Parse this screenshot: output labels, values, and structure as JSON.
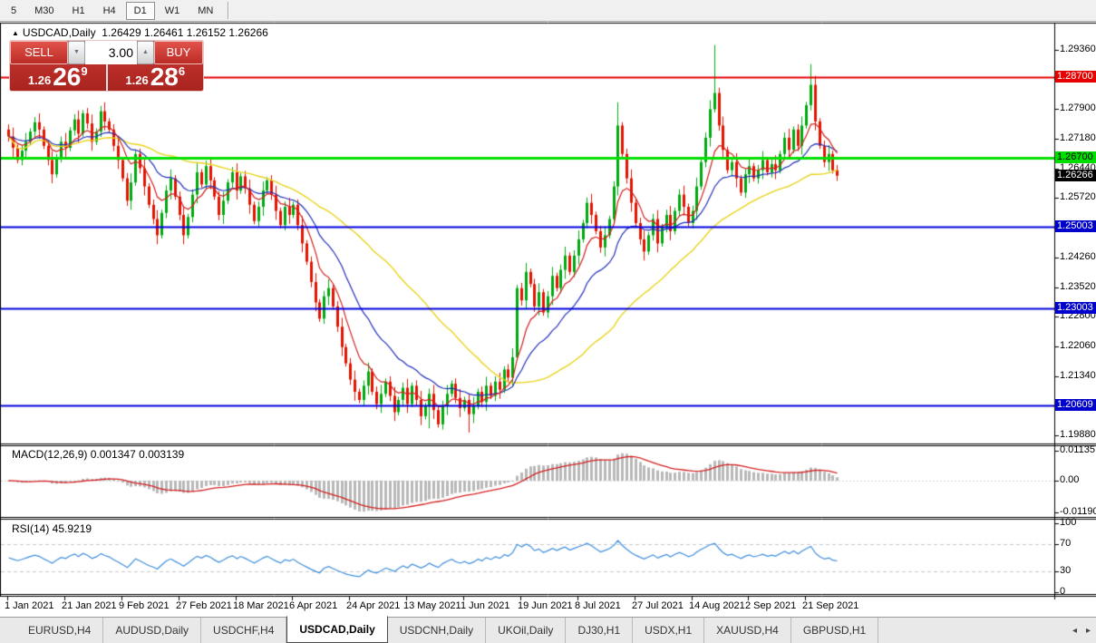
{
  "toolbar": {
    "timeframes": [
      {
        "label": "5",
        "active": false
      },
      {
        "label": "M30",
        "active": false
      },
      {
        "label": "H1",
        "active": false
      },
      {
        "label": "H4",
        "active": false
      },
      {
        "label": "D1",
        "active": true
      },
      {
        "label": "W1",
        "active": false
      },
      {
        "label": "MN",
        "active": false
      }
    ]
  },
  "chart": {
    "symbol": "USDCAD,Daily",
    "ohlc_text": "1.26429 1.26461 1.26152 1.26266"
  },
  "trade_panel": {
    "sell_label": "SELL",
    "buy_label": "BUY",
    "volume": "3.00",
    "sell": {
      "prefix": "1.26",
      "big": "26",
      "sup": "9"
    },
    "buy": {
      "prefix": "1.26",
      "big": "28",
      "sup": "6"
    }
  },
  "price_axis": {
    "ticks": [
      "1.29360",
      "1.28640",
      "1.27900",
      "1.27180",
      "1.26440",
      "1.25720",
      "1.24980",
      "1.24260",
      "1.23520",
      "1.22800",
      "1.22060",
      "1.21340",
      "1.20620",
      "1.19880"
    ],
    "levels": [
      {
        "price": 1.287,
        "label": "1.28700",
        "line_color": "#e60000",
        "label_bg": "#e60000",
        "label_fg": "#ffffff",
        "width": 2
      },
      {
        "price": 1.267,
        "label": "1.26700",
        "line_color": "#00e000",
        "label_bg": "#00dd00",
        "label_fg": "#000000",
        "width": 3
      },
      {
        "price": 1.25003,
        "label": "1.25003",
        "line_color": "#0000dd",
        "label_bg": "#0000cc",
        "label_fg": "#ffffff",
        "width": 2
      },
      {
        "price": 1.23003,
        "label": "1.23003",
        "line_color": "#0000dd",
        "label_bg": "#0000cc",
        "label_fg": "#ffffff",
        "width": 2
      },
      {
        "price": 1.20609,
        "label": "1.20609",
        "line_color": "#0000dd",
        "label_bg": "#0000cc",
        "label_fg": "#ffffff",
        "width": 2
      }
    ],
    "current_price": {
      "price": 1.26266,
      "label": "1.26266",
      "label_bg": "#000000",
      "label_fg": "#ffffff"
    }
  },
  "macd_panel": {
    "title": "MACD(12,26,9) 0.001347 0.003139",
    "axis": [
      {
        "label": "0.01135",
        "value": 0.01135
      },
      {
        "label": "0.00",
        "value": 0
      },
      {
        "label": "-0.011904",
        "value": -0.011904
      }
    ],
    "histogram_color": "#b8b8b8",
    "signal_color": "#d42020"
  },
  "rsi_panel": {
    "title": "RSI(14) 45.9219",
    "axis": [
      {
        "label": "100",
        "value": 100
      },
      {
        "label": "70",
        "value": 70
      },
      {
        "label": "30",
        "value": 30
      },
      {
        "label": "0",
        "value": 0
      }
    ],
    "dashed_levels": [
      70,
      30
    ],
    "line_color": "#3e8ede"
  },
  "date_axis": {
    "labels": [
      "1 Jan 2021",
      "21 Jan 2021",
      "9 Feb 2021",
      "27 Feb 2021",
      "18 Mar 2021",
      "6 Apr 2021",
      "24 Apr 2021",
      "13 May 2021",
      "1 Jun 2021",
      "19 Jun 2021",
      "8 Jul 2021",
      "27 Jul 2021",
      "14 Aug 2021",
      "2 Sep 2021",
      "21 Sep 2021"
    ],
    "indices": [
      0,
      13,
      26,
      39,
      52,
      65,
      78,
      91,
      104,
      117,
      130,
      143,
      156,
      169,
      182
    ]
  },
  "tabs": {
    "items": [
      "EURUSD,H4",
      "AUDUSD,Daily",
      "USDCHF,H4",
      "USDCAD,Daily",
      "USDCNH,Daily",
      "UKOil,Daily",
      "DJ30,H1",
      "USDX,H1",
      "XAUUSD,H4",
      "GBPUSD,H1"
    ],
    "active_index": 3,
    "scroll_left_icon": "◂",
    "scroll_right_icon": "▸"
  },
  "chart_data": {
    "type": "candlestick",
    "symbol": "USDCAD",
    "timeframe": "Daily",
    "bull_color": "#00aa10",
    "bear_color": "#e51400",
    "closes": [
      1.2723,
      1.2695,
      1.2665,
      1.2688,
      1.271,
      1.2735,
      1.2758,
      1.274,
      1.27,
      1.2665,
      1.263,
      1.2672,
      1.271,
      1.2695,
      1.2738,
      1.2765,
      1.273,
      1.278,
      1.2755,
      1.271,
      1.2735,
      1.2785,
      1.276,
      1.274,
      1.27,
      1.2665,
      1.262,
      1.2565,
      1.261,
      1.268,
      1.2645,
      1.26,
      1.2555,
      1.252,
      1.248,
      1.2535,
      1.259,
      1.262,
      1.2575,
      1.253,
      1.248,
      1.2525,
      1.258,
      1.2635,
      1.2605,
      1.265,
      1.2615,
      1.2575,
      1.253,
      1.2565,
      1.261,
      1.2635,
      1.259,
      1.2625,
      1.2595,
      1.2555,
      1.2515,
      1.255,
      1.259,
      1.2615,
      1.258,
      1.254,
      1.2505,
      1.255,
      1.253,
      1.2555,
      1.2505,
      1.246,
      1.2415,
      1.2365,
      1.2315,
      1.2275,
      1.233,
      1.235,
      1.2305,
      1.2255,
      1.2205,
      1.2165,
      1.2125,
      1.2095,
      1.2075,
      1.211,
      1.2145,
      1.2095,
      1.2065,
      1.209,
      1.212,
      1.2085,
      1.2045,
      1.2075,
      1.2105,
      1.2065,
      1.211,
      1.2075,
      1.2035,
      1.206,
      1.209,
      1.205,
      1.2015,
      1.206,
      1.209,
      1.2115,
      1.208,
      1.2055,
      1.2075,
      1.204,
      1.206,
      1.2095,
      1.207,
      1.211,
      1.2085,
      1.212,
      1.21,
      1.215,
      1.213,
      1.218,
      1.235,
      1.232,
      1.239,
      1.236,
      1.2305,
      1.234,
      1.229,
      1.233,
      1.238,
      1.235,
      1.2395,
      1.243,
      1.239,
      1.243,
      1.247,
      1.251,
      1.256,
      1.253,
      1.249,
      1.245,
      1.248,
      1.252,
      1.26,
      1.275,
      1.268,
      1.262,
      1.256,
      1.251,
      1.247,
      1.244,
      1.248,
      1.252,
      1.246,
      1.25,
      1.253,
      1.249,
      1.254,
      1.258,
      1.255,
      1.251,
      1.254,
      1.26,
      1.266,
      1.272,
      1.279,
      1.283,
      1.275,
      1.269,
      1.264,
      1.266,
      1.262,
      1.2585,
      1.263,
      1.265,
      1.262,
      1.264,
      1.2665,
      1.2635,
      1.2655,
      1.264,
      1.268,
      1.272,
      1.269,
      1.274,
      1.27,
      1.275,
      1.28,
      1.285,
      1.276,
      1.27,
      1.266,
      1.268,
      1.264,
      1.26266
    ],
    "wick_overrides": {
      "96": {
        "l": 1.2005
      },
      "105": {
        "l": 1.1995
      },
      "139": {
        "h": 1.2807
      },
      "161": {
        "h": 1.2948
      },
      "183": {
        "h": 1.2901
      }
    },
    "moving_averages": [
      {
        "type": "ema",
        "period": 8,
        "color": "#d42020"
      },
      {
        "type": "ema",
        "period": 20,
        "color": "#2030b8"
      },
      {
        "type": "sma",
        "period": 45,
        "color": "#e8d41c"
      }
    ],
    "macd": {
      "fast": 12,
      "slow": 26,
      "signal": 9,
      "main_value": 0.001347,
      "signal_value": 0.003139
    },
    "rsi": {
      "period": 14,
      "value": 45.9219
    }
  }
}
